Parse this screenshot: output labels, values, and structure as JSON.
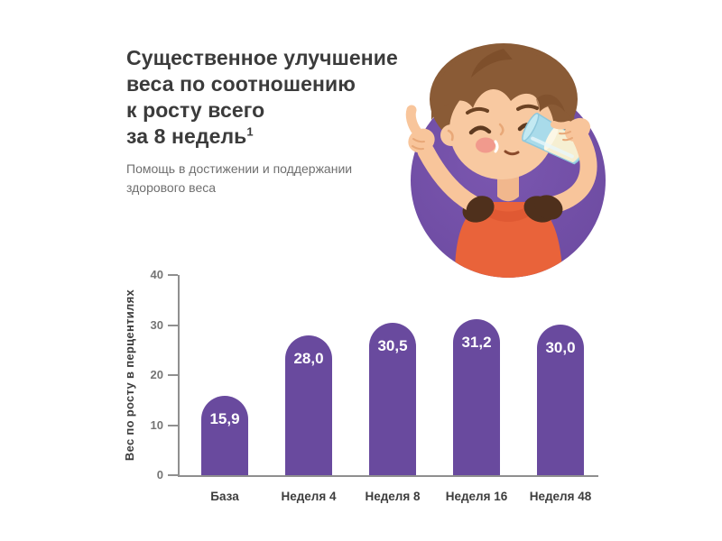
{
  "title": {
    "lines": [
      "Существенное улучшение",
      "веса по соотношению",
      "к росту всего",
      "за 8 недель"
    ],
    "superscript": "1",
    "color": "#3B3B3B"
  },
  "subtitle": {
    "text": "Помощь в достижении и поддержании здорового веса",
    "color": "#6F6F6F"
  },
  "illustration": {
    "description": "boy drinking glass of milk with thumbs up inside purple circle",
    "circle_color": "#7351A8"
  },
  "chart_data": {
    "type": "bar",
    "categories": [
      "База",
      "Неделя 4",
      "Неделя 8",
      "Неделя 16",
      "Неделя 48"
    ],
    "values": [
      15.9,
      28.0,
      30.5,
      31.2,
      30.0
    ],
    "value_labels": [
      "15,9",
      "28,0",
      "30,5",
      "31,2",
      "30,0"
    ],
    "title": "",
    "xlabel": "",
    "ylabel": "Вес по росту в перцентилях",
    "ylim": [
      0,
      40
    ],
    "yticks": [
      0,
      10,
      20,
      30,
      40
    ],
    "bar_color": "#694A9E",
    "axis_color": "#8F8F8F",
    "value_label_color": "#FFFFFF",
    "grid": false,
    "legend": false
  }
}
